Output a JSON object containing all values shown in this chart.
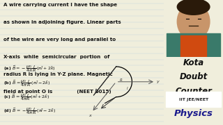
{
  "bg_color": "#f0eedc",
  "line_color": "#b8cce0",
  "right_bg_color": "#f5a800",
  "iit_bg_color": "#ffffff",
  "text_color": "#111111",
  "physics_color": "#1a1a8c",
  "kota_color": "#111111",
  "title_lines": [
    "A wire carrying current I have the shape",
    "as shown in adjoining figure. Linear parts",
    "of the wire are very long and parallel to",
    "X-axis  while  semicircular  portion  of",
    "radius R is lying in Y-Z plane. Magnetic",
    "field at point O is              (NEET 2015)"
  ],
  "opt_a": "(a) $\\vec{B} = -\\dfrac{\\mu_0}{4\\pi}\\dfrac{I}{R}\\,(\\pi\\hat{i} + 2\\hat{k})$",
  "opt_b": "(b) $\\vec{B} = \\dfrac{\\mu_0}{4\\pi}\\dfrac{I}{R}\\,(\\pi\\hat{i} - 2\\hat{k})$",
  "opt_c": "(c) $\\vec{B} = \\dfrac{\\mu_0}{4\\pi}\\dfrac{I}{R}\\,(\\pi\\hat{i} + 2\\hat{k})$",
  "opt_d": "(d) $\\vec{B} = -\\dfrac{\\mu_0}{4\\pi}\\dfrac{I}{R}\\,(\\pi\\hat{i} - 2\\hat{k})$",
  "kota_line1": "Kota",
  "kota_line2": "Doubt",
  "kota_line3": "Counter",
  "iit_text": "IIT JEE/NEET",
  "physics_text": "Physics"
}
